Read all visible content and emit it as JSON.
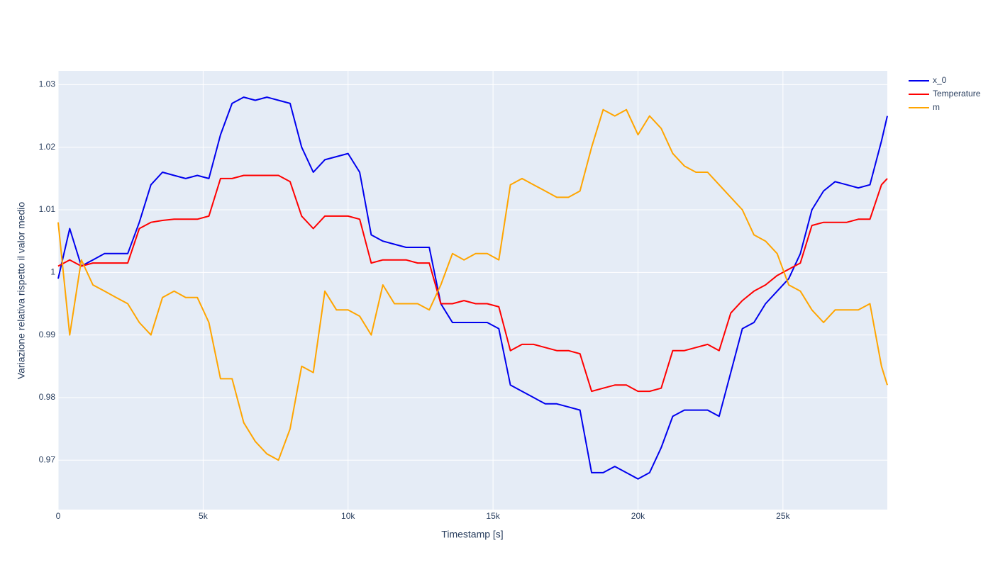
{
  "chart_data": {
    "type": "line",
    "xlabel": "Timestamp [s]",
    "ylabel": "Variazione relativa rispetto il valor medio",
    "x": [
      0,
      400,
      800,
      1200,
      1600,
      2000,
      2400,
      2800,
      3200,
      3600,
      4000,
      4400,
      4800,
      5200,
      5600,
      6000,
      6400,
      6800,
      7200,
      7600,
      8000,
      8400,
      8800,
      9200,
      9600,
      10000,
      10400,
      10800,
      11200,
      11600,
      12000,
      12400,
      12800,
      13200,
      13600,
      14000,
      14400,
      14800,
      15200,
      15600,
      16000,
      16400,
      16800,
      17200,
      17600,
      18000,
      18400,
      18800,
      19200,
      19600,
      20000,
      20400,
      20800,
      21200,
      21600,
      22000,
      22400,
      22800,
      23200,
      23600,
      24000,
      24400,
      24800,
      25200,
      25600,
      26000,
      26400,
      26800,
      27200,
      27600,
      28000,
      28400,
      28600
    ],
    "series": [
      {
        "name": "x_0",
        "color": "#0000ee",
        "values": [
          0.999,
          1.007,
          1.001,
          1.002,
          1.003,
          1.003,
          1.003,
          1.008,
          1.014,
          1.016,
          1.0155,
          1.015,
          1.0155,
          1.015,
          1.022,
          1.027,
          1.028,
          1.0275,
          1.028,
          1.0275,
          1.027,
          1.02,
          1.016,
          1.018,
          1.0185,
          1.019,
          1.016,
          1.006,
          1.005,
          1.0045,
          1.004,
          1.004,
          1.004,
          0.995,
          0.992,
          0.992,
          0.992,
          0.992,
          0.991,
          0.982,
          0.981,
          0.98,
          0.979,
          0.979,
          0.9785,
          0.978,
          0.968,
          0.968,
          0.969,
          0.968,
          0.967,
          0.968,
          0.972,
          0.977,
          0.978,
          0.978,
          0.978,
          0.977,
          0.984,
          0.991,
          0.992,
          0.995,
          0.997,
          0.999,
          1.003,
          1.01,
          1.013,
          1.0145,
          1.014,
          1.0135,
          1.014,
          1.021,
          1.025
        ]
      },
      {
        "name": "Temperature",
        "color": "#ff0000",
        "values": [
          1.001,
          1.002,
          1.001,
          1.0015,
          1.0015,
          1.0015,
          1.0015,
          1.007,
          1.008,
          1.0083,
          1.0085,
          1.0085,
          1.0085,
          1.009,
          1.015,
          1.015,
          1.0155,
          1.0155,
          1.0155,
          1.0155,
          1.0145,
          1.009,
          1.007,
          1.009,
          1.009,
          1.009,
          1.0085,
          1.0015,
          1.002,
          1.002,
          1.002,
          1.0015,
          1.0015,
          0.995,
          0.995,
          0.9955,
          0.995,
          0.995,
          0.9945,
          0.9875,
          0.9885,
          0.9885,
          0.988,
          0.9875,
          0.9875,
          0.987,
          0.981,
          0.9815,
          0.982,
          0.982,
          0.981,
          0.981,
          0.9815,
          0.9875,
          0.9875,
          0.988,
          0.9885,
          0.9875,
          0.9935,
          0.9955,
          0.997,
          0.998,
          0.9995,
          1.0005,
          1.0015,
          1.0075,
          1.008,
          1.008,
          1.008,
          1.0085,
          1.0085,
          1.014,
          1.015
        ]
      },
      {
        "name": "m",
        "color": "#ffa500",
        "values": [
          1.008,
          0.99,
          1.002,
          0.998,
          0.997,
          0.996,
          0.995,
          0.992,
          0.99,
          0.996,
          0.997,
          0.996,
          0.996,
          0.992,
          0.983,
          0.983,
          0.976,
          0.973,
          0.971,
          0.97,
          0.975,
          0.985,
          0.984,
          0.997,
          0.994,
          0.994,
          0.993,
          0.99,
          0.998,
          0.995,
          0.995,
          0.995,
          0.994,
          0.998,
          1.003,
          1.002,
          1.003,
          1.003,
          1.002,
          1.014,
          1.015,
          1.014,
          1.013,
          1.012,
          1.012,
          1.013,
          1.02,
          1.026,
          1.025,
          1.026,
          1.022,
          1.025,
          1.023,
          1.019,
          1.017,
          1.016,
          1.016,
          1.014,
          1.012,
          1.01,
          1.006,
          1.005,
          1.003,
          0.998,
          0.997,
          0.994,
          0.992,
          0.994,
          0.994,
          0.994,
          0.995,
          0.985,
          0.982
        ]
      }
    ],
    "xlim": [
      0,
      28600
    ],
    "xticks": [
      0,
      {
        "value": 5000,
        "label": "5k"
      },
      {
        "value": 10000,
        "label": "10k"
      },
      {
        "value": 15000,
        "label": "15k"
      },
      {
        "value": 20000,
        "label": "20k"
      },
      {
        "value": 25000,
        "label": "25k"
      }
    ],
    "ylim": [
      0.9621,
      1.0322
    ],
    "yticks": [
      0.97,
      0.98,
      0.99,
      1,
      1.01,
      1.02,
      1.03
    ],
    "grid": true,
    "legend": "right"
  }
}
